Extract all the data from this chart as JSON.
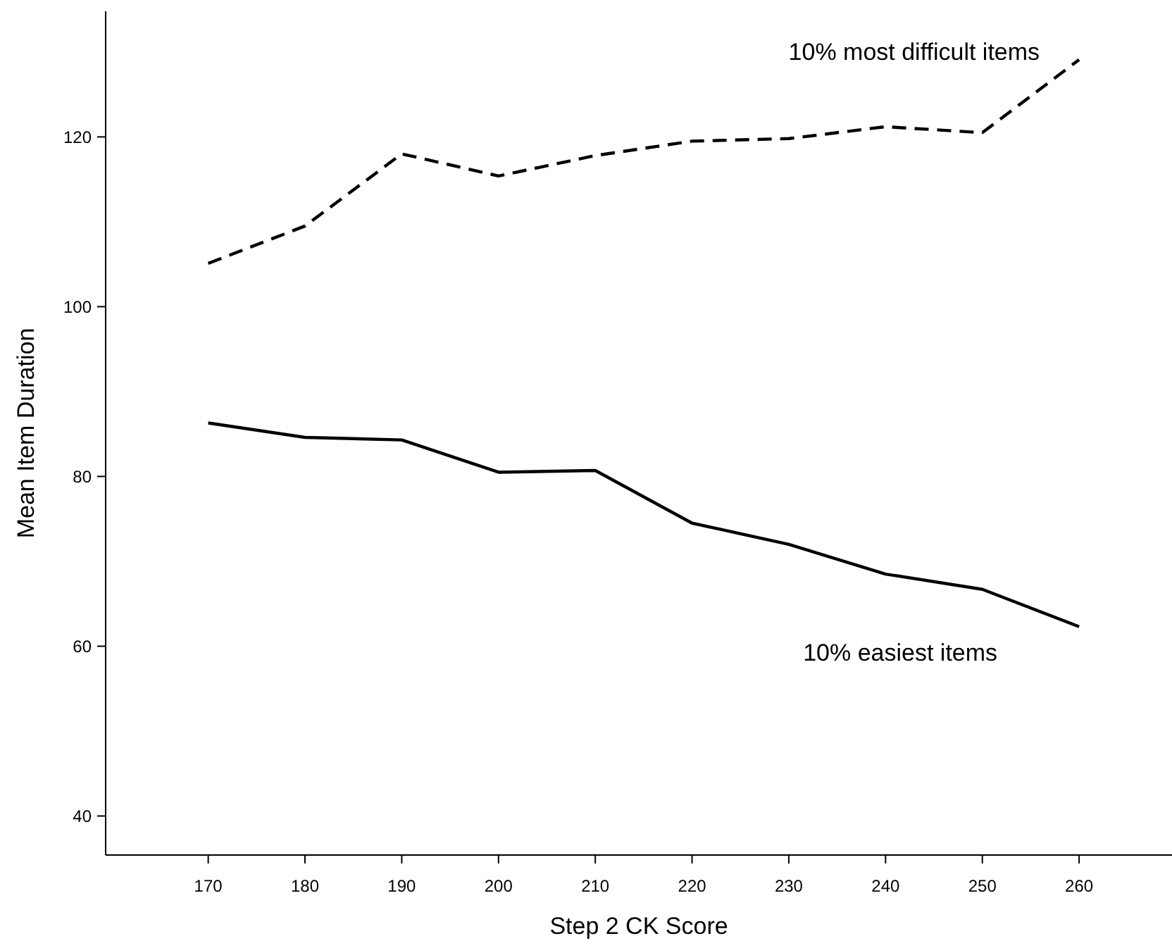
{
  "chart_data": {
    "type": "line",
    "xlabel": "Step 2 CK Score",
    "ylabel": "Mean Item Duration",
    "x": [
      170,
      180,
      190,
      200,
      210,
      220,
      230,
      240,
      250,
      260
    ],
    "xlim": [
      159.4,
      269.6
    ],
    "xticks": [
      170,
      180,
      190,
      200,
      210,
      220,
      230,
      240,
      250,
      260
    ],
    "ylim": [
      35.4,
      134.8
    ],
    "yticks": [
      40,
      60,
      80,
      100,
      120
    ],
    "grid": false,
    "marker": "none",
    "series": [
      {
        "name": "10% most difficult items",
        "color": "#000000",
        "line_style": "dashed",
        "values": [
          105.1,
          109.5,
          118,
          115.4,
          117.8,
          119.5,
          119.8,
          121.2,
          120.5,
          129.1
        ]
      },
      {
        "name": "10% easiest items",
        "color": "#000000",
        "line_style": "solid",
        "values": [
          86.3,
          84.6,
          84.3,
          80.5,
          80.7,
          74.5,
          72.0,
          68.5,
          66.7,
          62.3
        ]
      }
    ]
  }
}
